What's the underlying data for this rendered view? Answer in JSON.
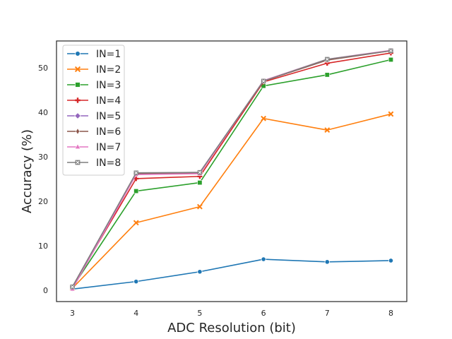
{
  "chart_data": {
    "type": "line",
    "title": "",
    "xlabel": "ADC Resolution (bit)",
    "ylabel": "Accuracy (%)",
    "x": [
      3,
      4,
      5,
      6,
      7,
      8
    ],
    "xlim": [
      2.75,
      8.25
    ],
    "ylim": [
      -2.5,
      56
    ],
    "xticks": [
      3,
      4,
      5,
      6,
      7,
      8
    ],
    "yticks": [
      0,
      10,
      20,
      30,
      40,
      50
    ],
    "grid": false,
    "legend_position": "top-left",
    "series": [
      {
        "name": "IN=1",
        "color": "#1f77b4",
        "marker": "circle",
        "values": [
          0.3,
          2.0,
          4.2,
          7.0,
          6.4,
          6.7
        ]
      },
      {
        "name": "IN=2",
        "color": "#ff7f0e",
        "marker": "x",
        "values": [
          0.5,
          15.2,
          18.8,
          38.6,
          36.0,
          39.6
        ]
      },
      {
        "name": "IN=3",
        "color": "#2ca02c",
        "marker": "square",
        "values": [
          0.7,
          22.3,
          24.2,
          45.9,
          48.4,
          51.8
        ]
      },
      {
        "name": "IN=4",
        "color": "#d62728",
        "marker": "plus",
        "values": [
          0.8,
          25.1,
          25.6,
          46.8,
          51.0,
          53.3
        ]
      },
      {
        "name": "IN=5",
        "color": "#9467bd",
        "marker": "diamond",
        "values": [
          0.8,
          26.3,
          26.5,
          47.0,
          51.8,
          53.8
        ]
      },
      {
        "name": "IN=6",
        "color": "#8c564b",
        "marker": "thin_diamond",
        "values": [
          0.8,
          26.2,
          26.4,
          47.0,
          51.7,
          53.8
        ]
      },
      {
        "name": "IN=7",
        "color": "#e377c2",
        "marker": "triangle",
        "values": [
          0.3,
          26.0,
          26.2,
          47.1,
          51.9,
          53.9
        ]
      },
      {
        "name": "IN=8",
        "color": "#7f7f7f",
        "marker": "x_box",
        "values": [
          0.8,
          26.4,
          26.5,
          47.0,
          51.9,
          53.8
        ]
      }
    ]
  }
}
